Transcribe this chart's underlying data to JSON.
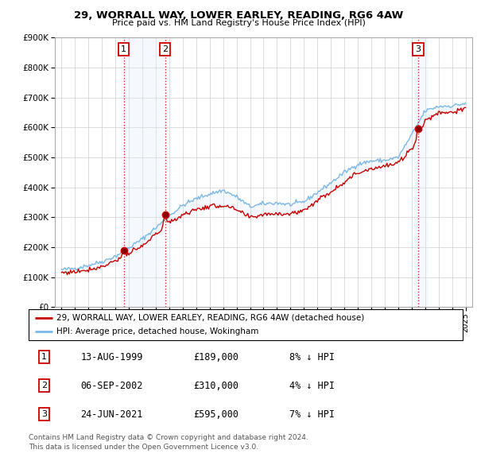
{
  "title": "29, WORRALL WAY, LOWER EARLEY, READING, RG6 4AW",
  "subtitle": "Price paid vs. HM Land Registry's House Price Index (HPI)",
  "legend_label_red": "29, WORRALL WAY, LOWER EARLEY, READING, RG6 4AW (detached house)",
  "legend_label_blue": "HPI: Average price, detached house, Wokingham",
  "footer1": "Contains HM Land Registry data © Crown copyright and database right 2024.",
  "footer2": "This data is licensed under the Open Government Licence v3.0.",
  "sales": [
    {
      "num": 1,
      "date": "13-AUG-1999",
      "price": 189000,
      "pct": "8%",
      "dir": "↓"
    },
    {
      "num": 2,
      "date": "06-SEP-2002",
      "price": 310000,
      "pct": "4%",
      "dir": "↓"
    },
    {
      "num": 3,
      "date": "24-JUN-2021",
      "price": 595000,
      "pct": "7%",
      "dir": "↓"
    }
  ],
  "sale_years": [
    1999.62,
    2002.68,
    2021.48
  ],
  "sale_prices": [
    189000,
    310000,
    595000
  ],
  "hpi_color": "#7ab8e8",
  "price_color": "#cc0000",
  "marker_box_color": "#cc0000",
  "shade_color": "#d8eaf8",
  "ylim": [
    0,
    900000
  ],
  "yticks": [
    0,
    100000,
    200000,
    300000,
    400000,
    500000,
    600000,
    700000,
    800000,
    900000
  ],
  "xticks": [
    1995,
    1996,
    1997,
    1998,
    1999,
    2000,
    2001,
    2002,
    2003,
    2004,
    2005,
    2006,
    2007,
    2008,
    2009,
    2010,
    2011,
    2012,
    2013,
    2014,
    2015,
    2016,
    2017,
    2018,
    2019,
    2020,
    2021,
    2022,
    2023,
    2024,
    2025
  ],
  "xlim": [
    1994.5,
    2025.5
  ],
  "hpi_base": [
    125000,
    130000,
    140000,
    152000,
    170000,
    198000,
    228000,
    265000,
    305000,
    340000,
    362000,
    378000,
    390000,
    368000,
    335000,
    345000,
    348000,
    342000,
    352000,
    383000,
    415000,
    450000,
    477000,
    488000,
    490000,
    500000,
    575000,
    655000,
    670000,
    672000,
    680000
  ],
  "price_ratio": [
    0.92,
    0.91,
    0.9,
    0.89,
    0.92,
    0.9,
    0.89,
    0.92,
    0.92,
    0.91,
    0.9,
    0.89,
    0.87,
    0.88,
    0.89,
    0.9,
    0.9,
    0.91,
    0.92,
    0.93,
    0.93,
    0.93,
    0.94,
    0.95,
    0.96,
    0.96,
    0.92,
    0.95,
    0.97,
    0.97,
    0.97
  ]
}
